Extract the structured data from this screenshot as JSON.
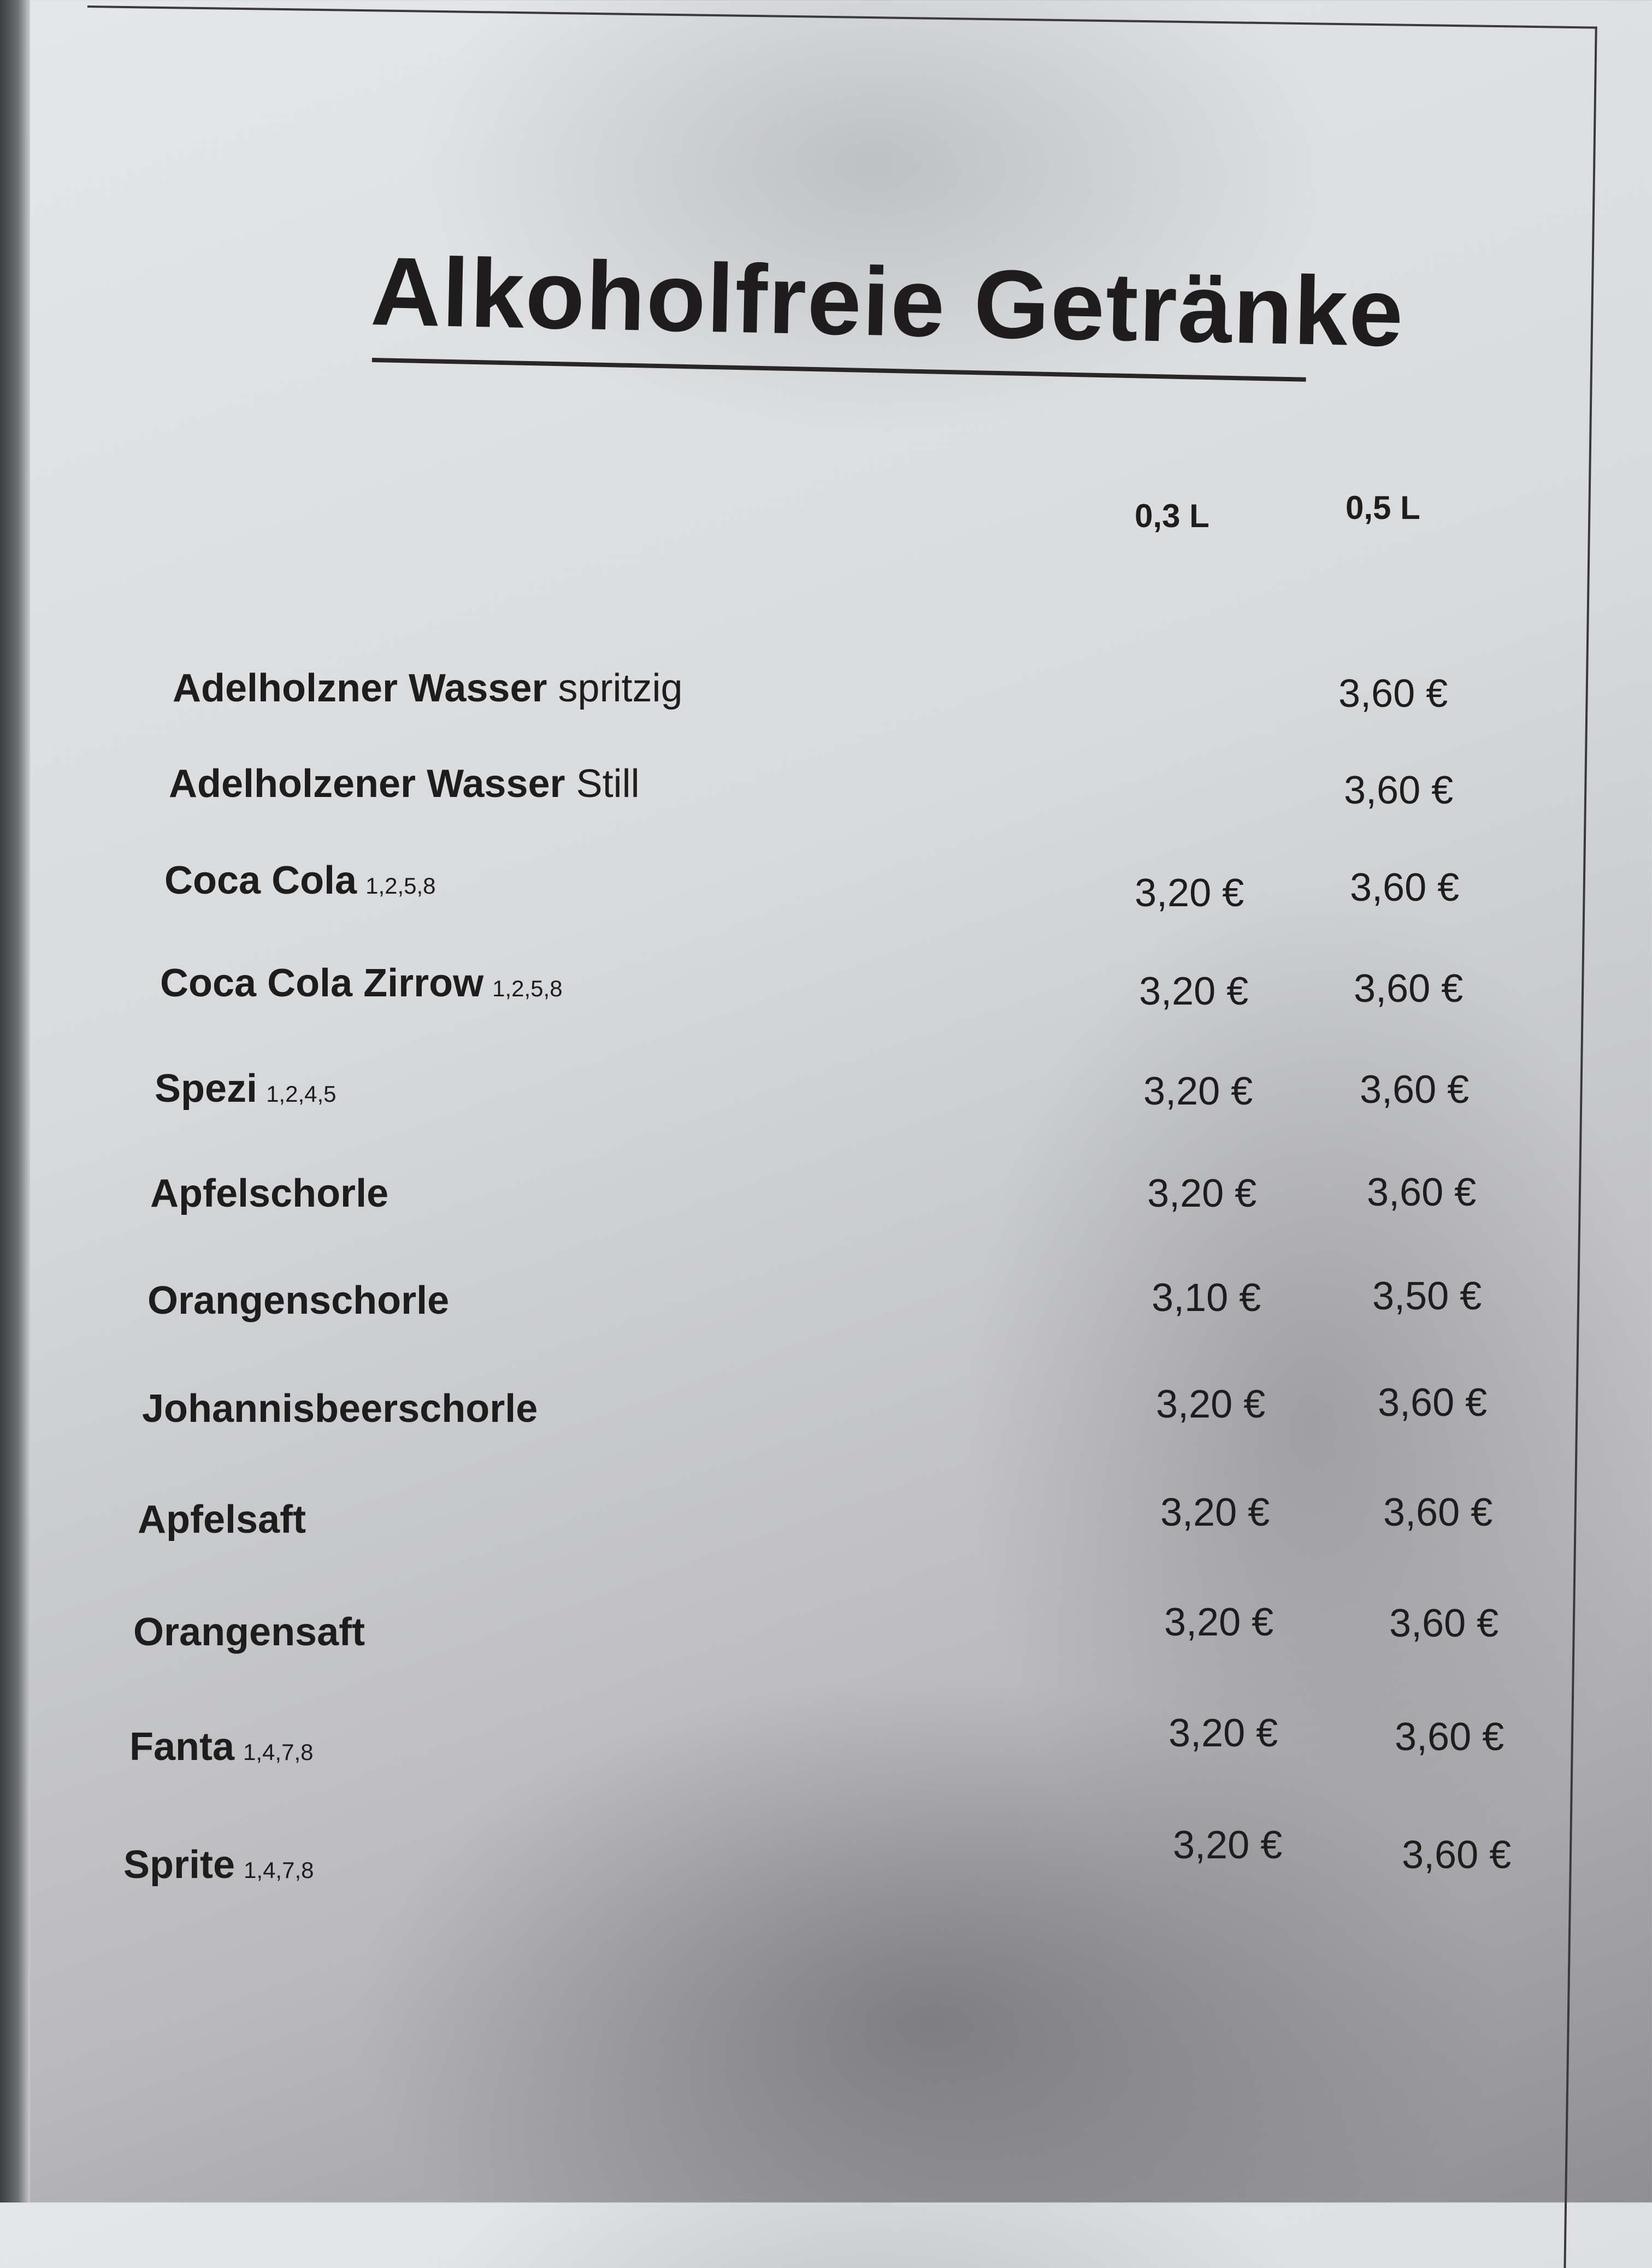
{
  "title": "Alkoholfreie Getränke",
  "columns": [
    "0,3 L",
    "0,5 L"
  ],
  "items": [
    {
      "name": "Adelholzner Wasser",
      "suffix": "spritzig",
      "allergens": "",
      "price_03": "",
      "price_05": "3,60 €"
    },
    {
      "name": "Adelholzener Wasser",
      "suffix": "Still",
      "allergens": "",
      "price_03": "",
      "price_05": "3,60 €"
    },
    {
      "name": "Coca Cola",
      "suffix": "",
      "allergens": "1,2,5,8",
      "price_03": "3,20 €",
      "price_05": "3,60 €"
    },
    {
      "name": "Coca Cola Zirrow",
      "suffix": "",
      "allergens": "1,2,5,8",
      "price_03": "3,20 €",
      "price_05": "3,60 €"
    },
    {
      "name": "Spezi",
      "suffix": "",
      "allergens": "1,2,4,5",
      "price_03": "3,20 €",
      "price_05": "3,60 €"
    },
    {
      "name": "Apfelschorle",
      "suffix": "",
      "allergens": "",
      "price_03": "3,20 €",
      "price_05": "3,60 €"
    },
    {
      "name": "Orangenschorle",
      "suffix": "",
      "allergens": "",
      "price_03": "3,10 €",
      "price_05": "3,50 €"
    },
    {
      "name": "Johannisbeerschorle",
      "suffix": "",
      "allergens": "",
      "price_03": "3,20 €",
      "price_05": "3,60 €"
    },
    {
      "name": "Apfelsaft",
      "suffix": "",
      "allergens": "",
      "price_03": "3,20 €",
      "price_05": "3,60 €"
    },
    {
      "name": "Orangensaft",
      "suffix": "",
      "allergens": "",
      "price_03": "3,20 €",
      "price_05": "3,60 €"
    },
    {
      "name": "Fanta",
      "suffix": "",
      "allergens": "1,4,7,8",
      "price_03": "3,20 €",
      "price_05": "3,60 €"
    },
    {
      "name": "Sprite",
      "suffix": "",
      "allergens": "1,4,7,8",
      "price_03": "3,20 €",
      "price_05": "3,60 €"
    }
  ]
}
